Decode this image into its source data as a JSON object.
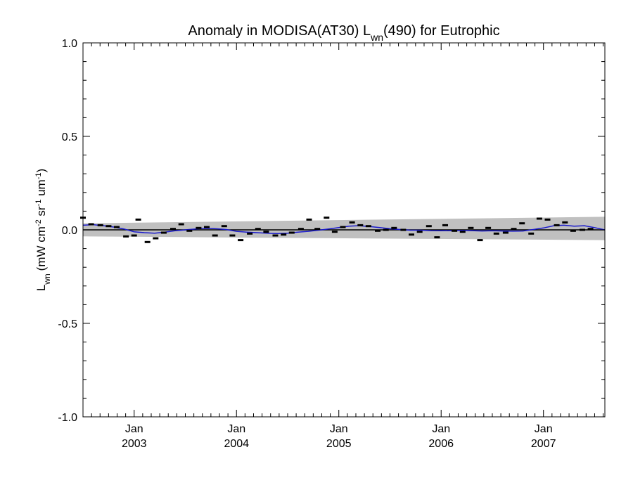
{
  "chart_data": {
    "type": "scatter",
    "title_main": "Anomaly in MODISA(AT30) L",
    "title_sub": "wn",
    "title_tail": "(490) for Eutrophic",
    "ylabel_main": "L",
    "ylabel_sub": "wn",
    "ylabel_units": "(mW cm",
    "ylabel_exp1": "-2",
    "ylabel_mid": " sr",
    "ylabel_exp2": "-1",
    "ylabel_end": " um",
    "ylabel_exp3": "-1",
    "ylabel_close": ")",
    "ylim": [
      -1.0,
      1.0
    ],
    "yticks": [
      -1.0,
      -0.5,
      0.0,
      0.5,
      1.0
    ],
    "ytick_labels": [
      "-1.0",
      "-0.5",
      "0.0",
      "0.5",
      "1.0"
    ],
    "xlim": [
      2002.5,
      2007.6
    ],
    "xticks": [
      {
        "x": 2003.0,
        "month": "Jan",
        "year": "2003"
      },
      {
        "x": 2004.0,
        "month": "Jan",
        "year": "2004"
      },
      {
        "x": 2005.0,
        "month": "Jan",
        "year": "2005"
      },
      {
        "x": 2006.0,
        "month": "Jan",
        "year": "2006"
      },
      {
        "x": 2007.0,
        "month": "Jan",
        "year": "2007"
      }
    ],
    "grey_band": {
      "x": [
        2002.5,
        2007.6
      ],
      "upper": [
        0.035,
        0.07
      ],
      "lower": [
        -0.035,
        -0.055
      ]
    },
    "zero_line": 0.0,
    "points": {
      "x": [
        2002.5,
        2002.58,
        2002.67,
        2002.75,
        2002.83,
        2002.92,
        2003.0,
        2003.04,
        2003.13,
        2003.21,
        2003.29,
        2003.38,
        2003.46,
        2003.54,
        2003.63,
        2003.71,
        2003.79,
        2003.88,
        2003.96,
        2004.04,
        2004.13,
        2004.21,
        2004.29,
        2004.38,
        2004.46,
        2004.54,
        2004.63,
        2004.71,
        2004.79,
        2004.88,
        2004.96,
        2005.04,
        2005.13,
        2005.21,
        2005.29,
        2005.38,
        2005.46,
        2005.54,
        2005.63,
        2005.71,
        2005.79,
        2005.88,
        2005.96,
        2006.04,
        2006.13,
        2006.21,
        2006.29,
        2006.38,
        2006.46,
        2006.54,
        2006.63,
        2006.71,
        2006.79,
        2006.88,
        2006.96,
        2007.04,
        2007.13,
        2007.21,
        2007.29,
        2007.38,
        2007.46
      ],
      "y": [
        0.065,
        0.03,
        0.025,
        0.02,
        0.015,
        -0.035,
        -0.03,
        0.055,
        -0.065,
        -0.045,
        -0.015,
        0.005,
        0.03,
        -0.005,
        0.01,
        0.015,
        -0.03,
        0.02,
        -0.03,
        -0.055,
        -0.02,
        0.005,
        -0.01,
        -0.03,
        -0.025,
        -0.015,
        0.005,
        0.055,
        0.005,
        0.065,
        -0.01,
        0.015,
        0.04,
        0.025,
        0.02,
        -0.005,
        0.0,
        0.01,
        0.0,
        -0.025,
        -0.01,
        0.02,
        -0.04,
        0.025,
        -0.005,
        -0.01,
        0.01,
        -0.055,
        0.01,
        -0.02,
        -0.015,
        0.005,
        0.035,
        -0.02,
        0.06,
        0.055,
        0.025,
        0.04,
        -0.005,
        0.0,
        0.005
      ]
    },
    "smooth_line": {
      "x": [
        2002.5,
        2002.6,
        2002.7,
        2002.8,
        2002.9,
        2003.0,
        2003.1,
        2003.2,
        2003.3,
        2003.4,
        2003.5,
        2003.6,
        2003.7,
        2003.8,
        2003.9,
        2004.0,
        2004.1,
        2004.2,
        2004.3,
        2004.4,
        2004.5,
        2004.6,
        2004.7,
        2004.8,
        2004.9,
        2005.0,
        2005.1,
        2005.2,
        2005.3,
        2005.4,
        2005.5,
        2005.6,
        2005.7,
        2005.8,
        2005.9,
        2006.0,
        2006.1,
        2006.2,
        2006.3,
        2006.4,
        2006.5,
        2006.6,
        2006.7,
        2006.8,
        2006.9,
        2007.0,
        2007.1,
        2007.2,
        2007.3,
        2007.4,
        2007.5,
        2007.6
      ],
      "y": [
        0.025,
        0.028,
        0.022,
        0.015,
        0.005,
        -0.01,
        -0.015,
        -0.018,
        -0.012,
        -0.005,
        0.0,
        0.005,
        0.008,
        0.006,
        0.002,
        -0.008,
        -0.012,
        -0.015,
        -0.018,
        -0.02,
        -0.018,
        -0.012,
        -0.008,
        -0.002,
        0.005,
        0.012,
        0.02,
        0.022,
        0.018,
        0.012,
        0.006,
        0.002,
        -0.002,
        -0.002,
        -0.004,
        -0.005,
        -0.004,
        -0.003,
        -0.004,
        -0.006,
        -0.005,
        -0.006,
        -0.007,
        -0.006,
        0.002,
        0.01,
        0.022,
        0.025,
        0.02,
        0.022,
        0.012,
        0.0
      ]
    },
    "colors": {
      "band": "#c0c0c0",
      "smooth": "#1a1acc",
      "points": "#000000",
      "axis": "#000000"
    }
  }
}
